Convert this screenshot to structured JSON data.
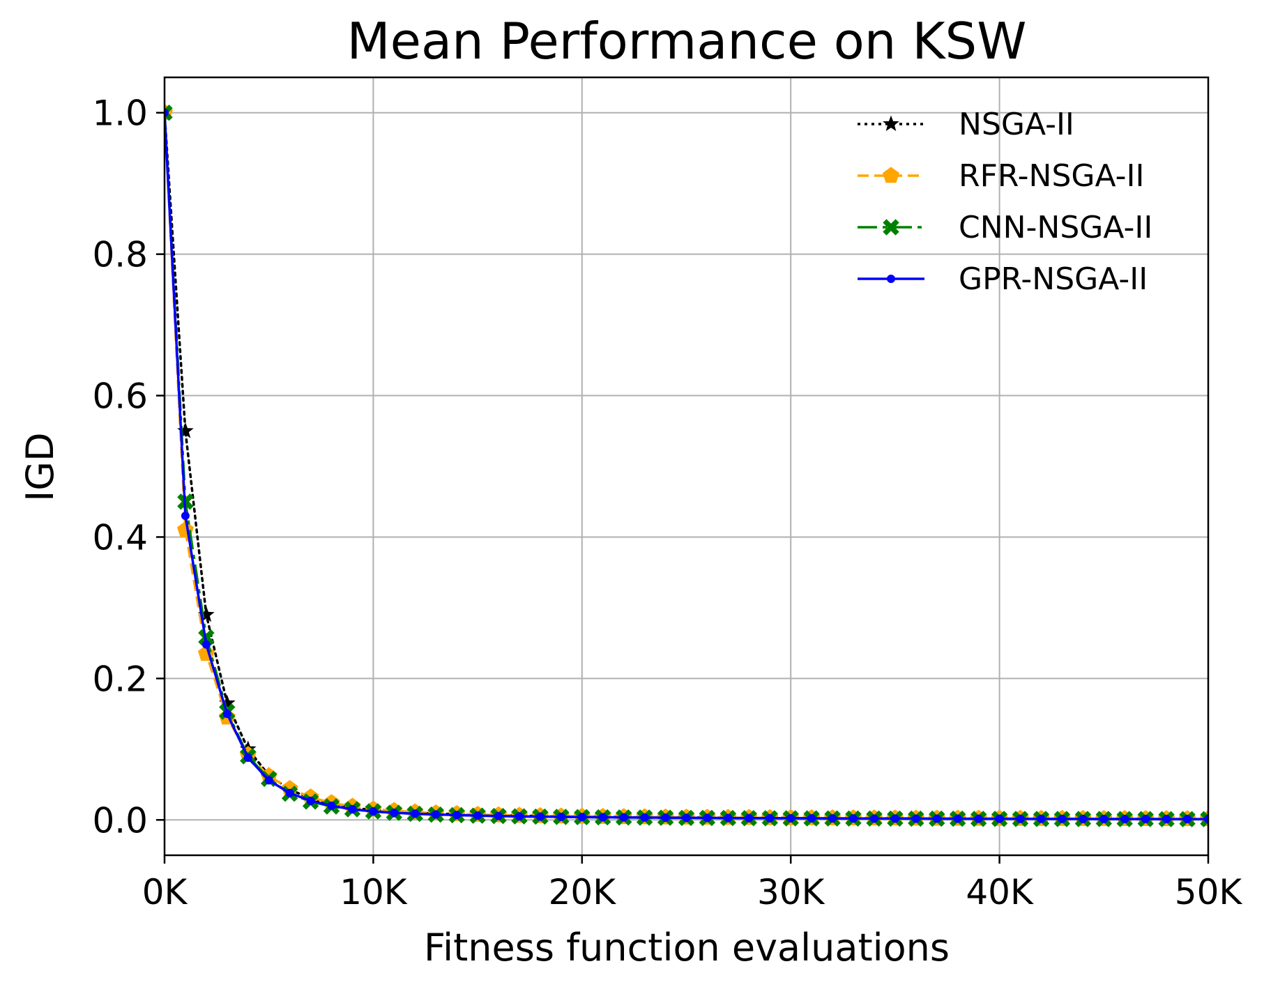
{
  "chart_data": {
    "type": "line",
    "title": "Mean Performance on KSW",
    "xlabel": "Fitness function evaluations",
    "ylabel": "IGD",
    "xlim": [
      0,
      50000
    ],
    "ylim": [
      -0.05,
      1.05
    ],
    "xticks": [
      0,
      10000,
      20000,
      30000,
      40000,
      50000
    ],
    "xtick_labels": [
      "0K",
      "10K",
      "20K",
      "30K",
      "40K",
      "50K"
    ],
    "yticks": [
      0.0,
      0.2,
      0.4,
      0.6,
      0.8,
      1.0
    ],
    "ytick_labels": [
      "0.0",
      "0.2",
      "0.4",
      "0.6",
      "0.8",
      "1.0"
    ],
    "grid": true,
    "legend_position": "top-right",
    "x": [
      0,
      1000,
      2000,
      3000,
      4000,
      5000,
      6000,
      7000,
      8000,
      9000,
      10000,
      11000,
      12000,
      13000,
      14000,
      15000,
      16000,
      17000,
      18000,
      19000,
      20000,
      21000,
      22000,
      23000,
      24000,
      25000,
      26000,
      27000,
      28000,
      29000,
      30000,
      31000,
      32000,
      33000,
      34000,
      35000,
      36000,
      37000,
      38000,
      39000,
      40000,
      41000,
      42000,
      43000,
      44000,
      45000,
      46000,
      47000,
      48000,
      49000,
      50000
    ],
    "series": [
      {
        "name": "NSGA-II",
        "color": "#000000",
        "line_style": "dotted",
        "marker": "star",
        "values": [
          1.0,
          0.55,
          0.29,
          0.165,
          0.1,
          0.063,
          0.043,
          0.03,
          0.022,
          0.017,
          0.014,
          0.012,
          0.01,
          0.009,
          0.008,
          0.007,
          0.0065,
          0.006,
          0.0055,
          0.005,
          0.0046,
          0.0043,
          0.004,
          0.0038,
          0.0036,
          0.0034,
          0.0032,
          0.003,
          0.0029,
          0.0028,
          0.0026,
          0.0025,
          0.0024,
          0.0023,
          0.0022,
          0.0021,
          0.002,
          0.0019,
          0.0018,
          0.0018,
          0.0017,
          0.0016,
          0.0016,
          0.0015,
          0.0015,
          0.0014,
          0.0014,
          0.0013,
          0.0013,
          0.0012,
          0.0012
        ]
      },
      {
        "name": "RFR-NSGA-II",
        "color": "#FFA500",
        "line_style": "dashed",
        "marker": "pentagon",
        "values": [
          1.0,
          0.41,
          0.235,
          0.145,
          0.092,
          0.062,
          0.044,
          0.032,
          0.024,
          0.019,
          0.015,
          0.013,
          0.011,
          0.0095,
          0.0085,
          0.0075,
          0.0068,
          0.0062,
          0.0057,
          0.0052,
          0.0048,
          0.0045,
          0.0042,
          0.0039,
          0.0037,
          0.0035,
          0.0033,
          0.0031,
          0.003,
          0.0028,
          0.0027,
          0.0026,
          0.0025,
          0.0024,
          0.0023,
          0.0022,
          0.0021,
          0.002,
          0.002,
          0.0019,
          0.0018,
          0.0018,
          0.0017,
          0.0017,
          0.0016,
          0.0016,
          0.0015,
          0.0015,
          0.0014,
          0.0014,
          0.0014
        ]
      },
      {
        "name": "CNN-NSGA-II",
        "color": "#008000",
        "line_style": "dashdot",
        "marker": "x",
        "values": [
          1.0,
          0.45,
          0.258,
          0.153,
          0.09,
          0.058,
          0.037,
          0.026,
          0.019,
          0.015,
          0.012,
          0.01,
          0.0085,
          0.0075,
          0.0067,
          0.006,
          0.0055,
          0.005,
          0.0046,
          0.0042,
          0.0039,
          0.0036,
          0.0034,
          0.0032,
          0.003,
          0.0028,
          0.0027,
          0.0026,
          0.0024,
          0.0023,
          0.0022,
          0.0021,
          0.002,
          0.0019,
          0.0019,
          0.0018,
          0.0017,
          0.0017,
          0.0016,
          0.0015,
          0.0015,
          0.0014,
          0.0014,
          0.0013,
          0.0013,
          0.0013,
          0.0012,
          0.0012,
          0.0011,
          0.0011,
          0.0011
        ]
      },
      {
        "name": "GPR-NSGA-II",
        "color": "#0000FF",
        "line_style": "solid",
        "marker": "dot",
        "values": [
          1.0,
          0.43,
          0.248,
          0.15,
          0.088,
          0.056,
          0.038,
          0.027,
          0.02,
          0.015,
          0.012,
          0.01,
          0.0088,
          0.0077,
          0.0068,
          0.0061,
          0.0055,
          0.005,
          0.0046,
          0.0043,
          0.004,
          0.0037,
          0.0035,
          0.0033,
          0.0031,
          0.0029,
          0.0028,
          0.0026,
          0.0025,
          0.0024,
          0.0023,
          0.0022,
          0.0021,
          0.002,
          0.0019,
          0.0019,
          0.0018,
          0.0017,
          0.0017,
          0.0016,
          0.0016,
          0.0015,
          0.0015,
          0.0014,
          0.0014,
          0.0013,
          0.0013,
          0.0013,
          0.0012,
          0.0012,
          0.0012
        ]
      }
    ]
  }
}
